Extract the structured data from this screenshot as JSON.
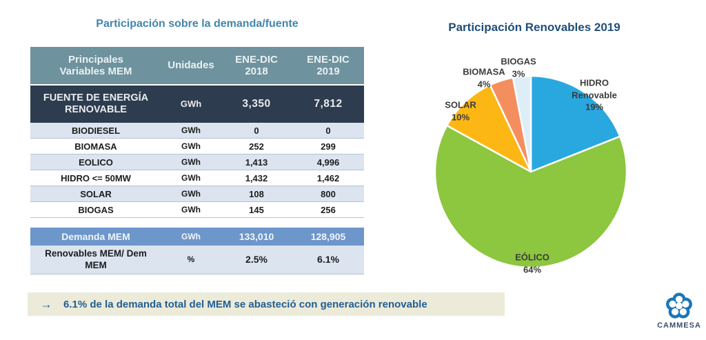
{
  "left_panel": {
    "title": "Participación sobre la demanda/fuente"
  },
  "callout": {
    "arrow": "→",
    "text": "6.1% de la demanda total del MEM se abasteció con generación renovable"
  },
  "logo": {
    "text": "CAMMESA"
  },
  "chart_data": [
    {
      "type": "pie",
      "title": "Participación Renovables 2019",
      "start_angle_deg": 0,
      "direction": "clockwise",
      "legend": "labels-around-slices",
      "slices": [
        {
          "name": "HIDRO Renovable",
          "value": 19,
          "pct_label": "19%",
          "color": "#29a8e0"
        },
        {
          "name": "EÓLICO",
          "value": 64,
          "pct_label": "64%",
          "color": "#8dc63f"
        },
        {
          "name": "SOLAR",
          "value": 10,
          "pct_label": "10%",
          "color": "#fdb714"
        },
        {
          "name": "BIOMASA",
          "value": 4,
          "pct_label": "4%",
          "color": "#f58e5e"
        },
        {
          "name": "BIOGAS",
          "value": 3,
          "pct_label": "3%",
          "color": "#ddeef7"
        }
      ]
    },
    {
      "type": "table",
      "title": "Participación sobre la demanda/fuente",
      "columns": [
        "Principales Variables MEM",
        "Unidades",
        "ENE-DIC 2018",
        "ENE-DIC 2019"
      ],
      "total_row": {
        "name": "FUENTE DE ENERGÍA RENOVABLE",
        "unit": "GWh",
        "y2018": "3,350",
        "y2019": "7,812"
      },
      "rows": [
        {
          "name": "BIODIESEL",
          "unit": "GWh",
          "y2018": "0",
          "y2019": "0"
        },
        {
          "name": "BIOMASA",
          "unit": "GWh",
          "y2018": "252",
          "y2019": "299"
        },
        {
          "name": "EOLICO",
          "unit": "GWh",
          "y2018": "1,413",
          "y2019": "4,996"
        },
        {
          "name": "HIDRO <= 50MW",
          "unit": "GWh",
          "y2018": "1,432",
          "y2019": "1,462"
        },
        {
          "name": "SOLAR",
          "unit": "GWh",
          "y2018": "108",
          "y2019": "800"
        },
        {
          "name": "BIOGAS",
          "unit": "GWh",
          "y2018": "145",
          "y2019": "256"
        }
      ],
      "demand_row": {
        "name": "Demanda MEM",
        "unit": "GWh",
        "y2018": "133,010",
        "y2019": "128,905"
      },
      "ratio_row": {
        "name": "Renovables MEM/ Dem MEM",
        "unit": "%",
        "y2018": "2.5%",
        "y2019": "6.1%"
      }
    }
  ]
}
